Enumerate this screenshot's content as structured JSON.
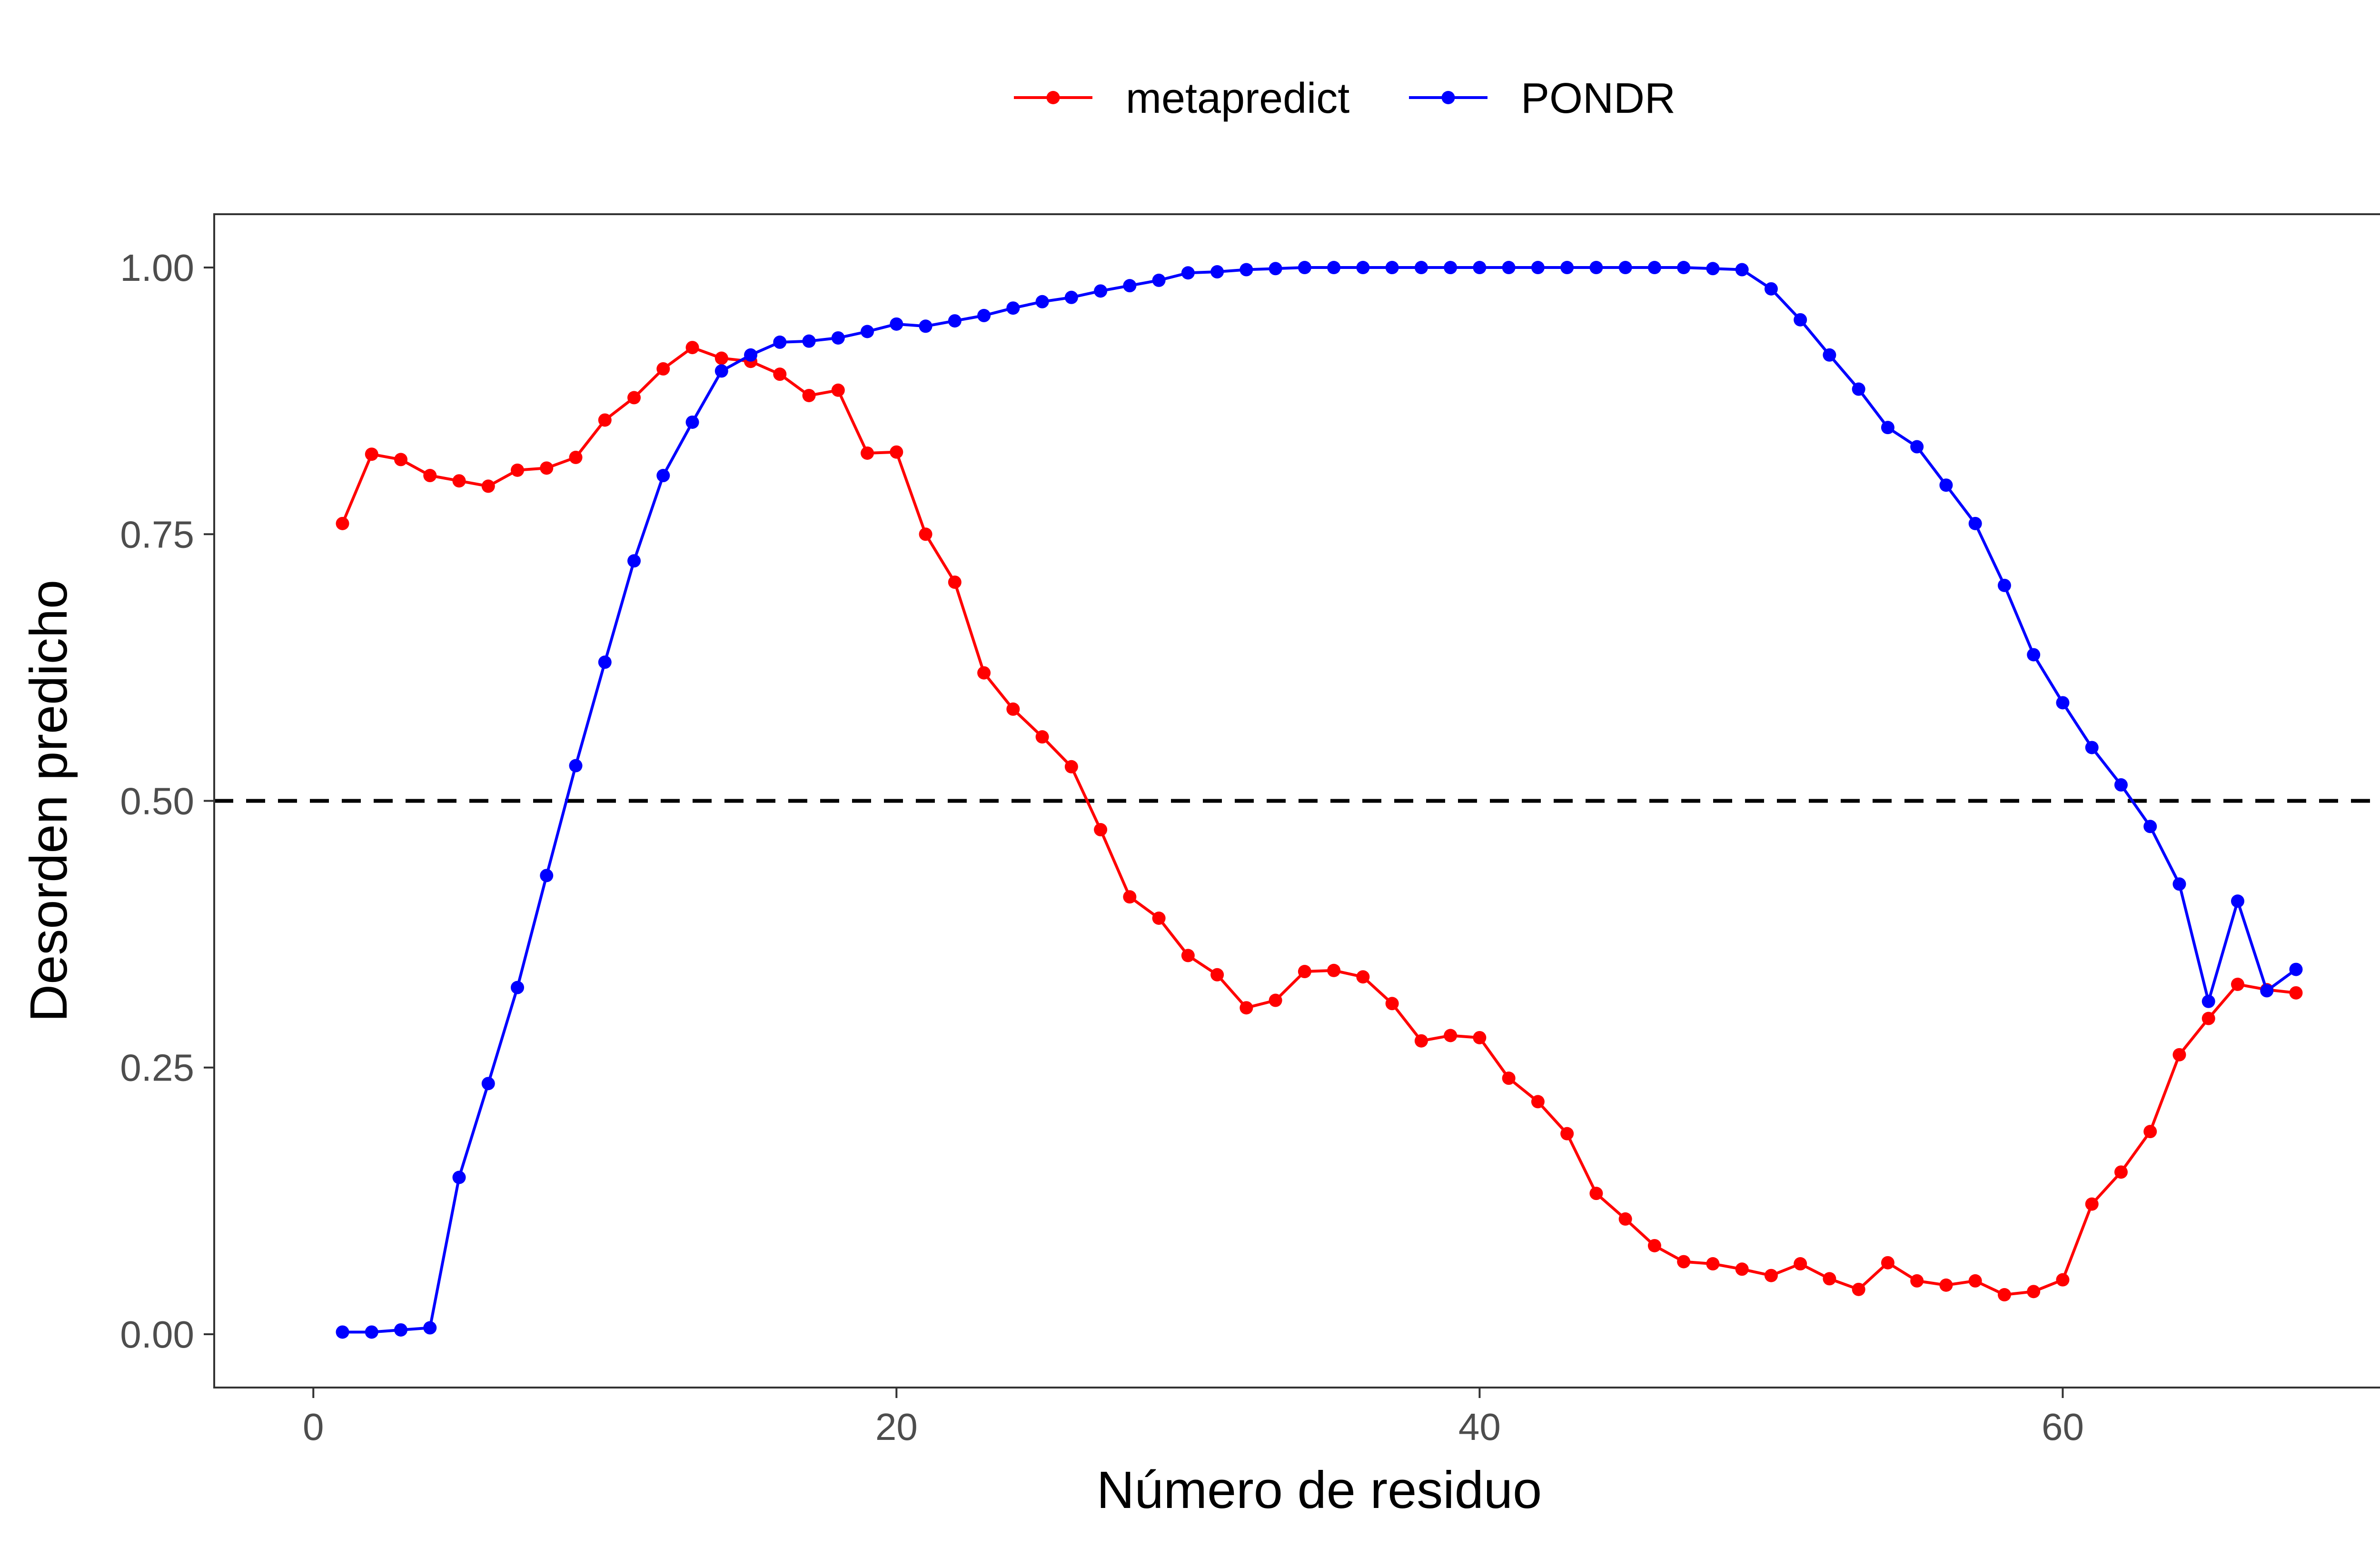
{
  "chart_data": {
    "type": "line",
    "title": "",
    "xlabel": "Número de residuo",
    "ylabel": "Desorden predicho",
    "xlim": [
      -3.4,
      72.4
    ],
    "ylim": [
      -0.05,
      1.05
    ],
    "x_ticks": [
      0,
      20,
      40,
      60
    ],
    "x_tick_labels": [
      "0",
      "20",
      "40",
      "60"
    ],
    "y_ticks": [
      0,
      0.25,
      0.5,
      0.75,
      1.0
    ],
    "y_tick_labels": [
      "0.00",
      "0.25",
      "0.50",
      "0.75",
      "1.00"
    ],
    "grid": false,
    "legend_position": "top",
    "reference_line": {
      "y": 0.5,
      "style": "dashed",
      "color": "#000000"
    },
    "x": [
      1,
      2,
      3,
      4,
      5,
      6,
      7,
      8,
      9,
      10,
      11,
      12,
      13,
      14,
      15,
      16,
      17,
      18,
      19,
      20,
      21,
      22,
      23,
      24,
      25,
      26,
      27,
      28,
      29,
      30,
      31,
      32,
      33,
      34,
      35,
      36,
      37,
      38,
      39,
      40,
      41,
      42,
      43,
      44,
      45,
      46,
      47,
      48,
      49,
      50,
      51,
      52,
      53,
      54,
      55,
      56,
      57,
      58,
      59,
      60,
      61,
      62,
      63,
      64,
      65,
      66,
      67,
      68
    ],
    "series": [
      {
        "name": "metapredict",
        "color": "#ff0000",
        "values": [
          0.76,
          0.825,
          0.82,
          0.805,
          0.8,
          0.795,
          0.81,
          0.812,
          0.822,
          0.857,
          0.878,
          0.905,
          0.925,
          0.915,
          0.912,
          0.9,
          0.88,
          0.885,
          0.826,
          0.827,
          0.75,
          0.705,
          0.62,
          0.586,
          0.56,
          0.532,
          0.473,
          0.41,
          0.39,
          0.355,
          0.337,
          0.306,
          0.313,
          0.34,
          0.341,
          0.335,
          0.31,
          0.275,
          0.28,
          0.278,
          0.24,
          0.218,
          0.188,
          0.132,
          0.108,
          0.083,
          0.068,
          0.066,
          0.061,
          0.055,
          0.066,
          0.052,
          0.042,
          0.067,
          0.05,
          0.046,
          0.05,
          0.037,
          0.04,
          0.051,
          0.122,
          0.152,
          0.19,
          0.262,
          0.296,
          0.328,
          0.323,
          0.32
        ]
      },
      {
        "name": "PONDR",
        "color": "#0000ff",
        "values": [
          0.002,
          0.002,
          0.004,
          0.006,
          0.147,
          0.235,
          0.325,
          0.43,
          0.533,
          0.63,
          0.725,
          0.805,
          0.855,
          0.903,
          0.918,
          0.93,
          0.931,
          0.934,
          0.94,
          0.947,
          0.945,
          0.95,
          0.955,
          0.962,
          0.968,
          0.972,
          0.978,
          0.983,
          0.988,
          0.995,
          0.996,
          0.998,
          0.999,
          1.0,
          1.0,
          1.0,
          1.0,
          1.0,
          1.0,
          1.0,
          1.0,
          1.0,
          1.0,
          1.0,
          1.0,
          1.0,
          1.0,
          0.999,
          0.998,
          0.98,
          0.951,
          0.918,
          0.886,
          0.85,
          0.832,
          0.796,
          0.76,
          0.702,
          0.637,
          0.592,
          0.55,
          0.515,
          0.476,
          0.422,
          0.312,
          0.406,
          0.322,
          0.342
        ]
      }
    ]
  }
}
